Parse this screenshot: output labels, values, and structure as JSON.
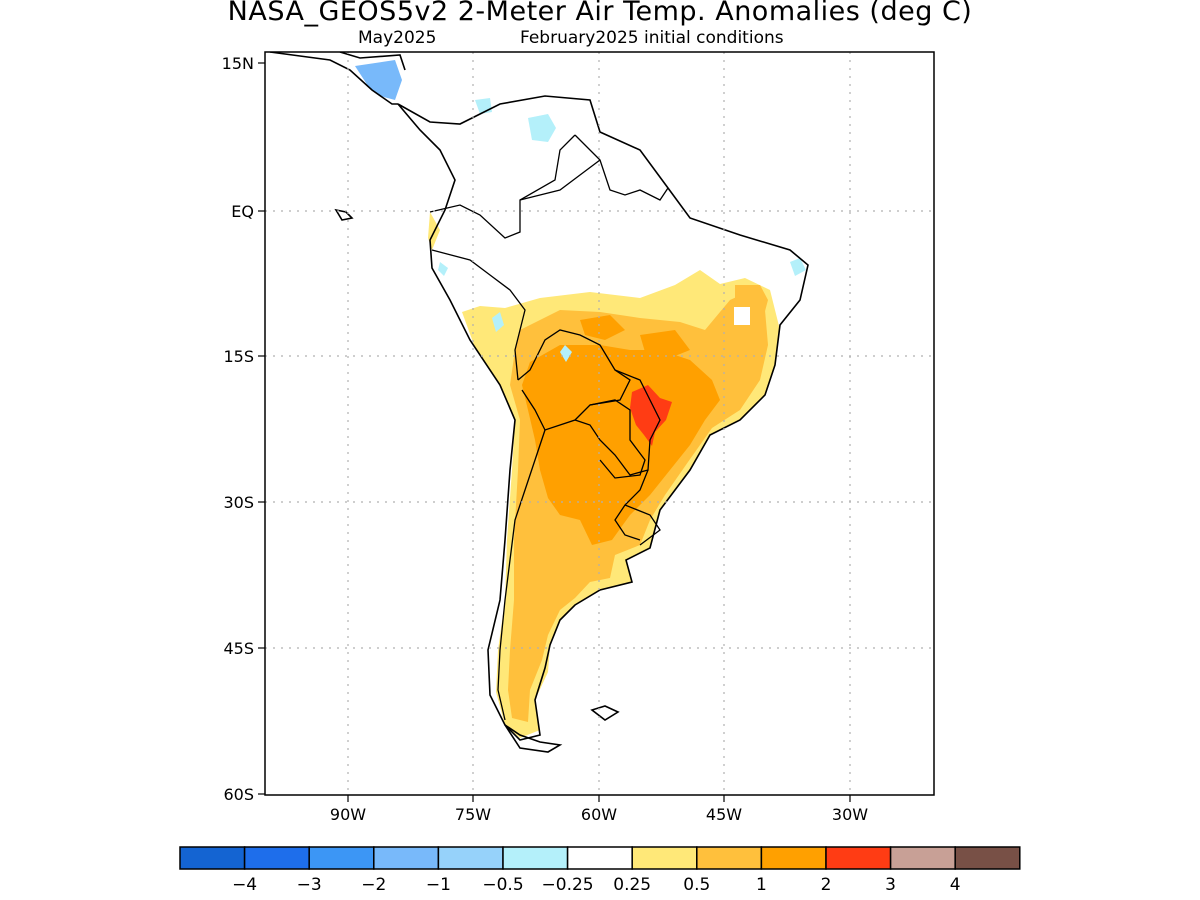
{
  "title": "NASA_GEOS5v2 2-Meter Air Temp. Anomalies (deg C)",
  "subtitle_left": "May2025",
  "subtitle_right": "February2025 initial conditions",
  "lat_labels": [
    "15N",
    "EQ",
    "15S",
    "30S",
    "45S",
    "60S"
  ],
  "lon_labels": [
    "90W",
    "75W",
    "60W",
    "45W",
    "30W"
  ],
  "colorbar": {
    "colors": [
      "#1464d2",
      "#1e6eeb",
      "#3c96f5",
      "#78b9fa",
      "#96d2fa",
      "#b4f0fa",
      "#ffffff",
      "#ffe878",
      "#ffc03c",
      "#ffa000",
      "#ff3c14",
      "#c8a096",
      "#785046"
    ],
    "labels": [
      "-4",
      "-3",
      "-2",
      "-1",
      "-0.5",
      "-0.25",
      "0.25",
      "0.5",
      "1",
      "2",
      "3",
      "4"
    ]
  },
  "map": {
    "grid": true,
    "colors": {
      "ocean": "#ffffff",
      "coast": "#000000",
      "grid": "#b0b0b0"
    }
  }
}
